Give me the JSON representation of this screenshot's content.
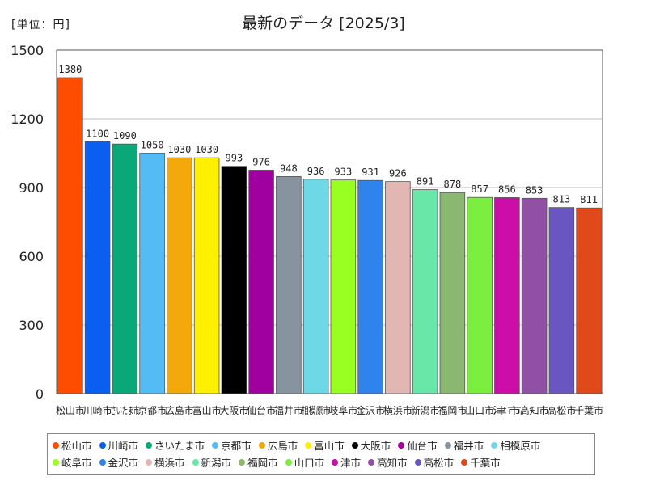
{
  "unit_label": "[単位：円]",
  "chart_data": {
    "type": "bar",
    "title": "最新のデータ [2025/3]",
    "ylim": [
      0,
      1500
    ],
    "yticks": [
      0,
      300,
      600,
      900,
      1200,
      1500
    ],
    "ytick_labels": [
      "0",
      "300",
      "600",
      "900",
      "1200",
      "1500"
    ],
    "categories": [
      "松山市",
      "川崎市",
      "さいたま市",
      "京都市",
      "広島市",
      "富山市",
      "大阪市",
      "仙台市",
      "福井市",
      "相模原市",
      "岐阜市",
      "金沢市",
      "横浜市",
      "新潟市",
      "福岡市",
      "山口市",
      "津市",
      "高知市",
      "高松市",
      "千葉市"
    ],
    "values": [
      1380,
      1100,
      1090,
      1050,
      1030,
      1030,
      993,
      976,
      948,
      936,
      933,
      931,
      926,
      891,
      878,
      857,
      856,
      853,
      813,
      811
    ],
    "value_labels": [
      "1380",
      "1100",
      "1090",
      "1050",
      "1030",
      "1030",
      "993",
      "976",
      "948",
      "936",
      "933",
      "931",
      "926",
      "891",
      "878",
      "857",
      "856",
      "853",
      "813",
      "811"
    ],
    "colors": [
      "#ff4d00",
      "#0a5ef0",
      "#0aa878",
      "#55bbf5",
      "#f4a90a",
      "#fff000",
      "#000000",
      "#a0009f",
      "#8794a0",
      "#6fd8e6",
      "#99ff22",
      "#2e84ec",
      "#e2b6b3",
      "#68e8a8",
      "#8ab86e",
      "#7cee40",
      "#cc0da7",
      "#9050a4",
      "#6a56c0",
      "#e04a1a"
    ],
    "legend_position": "bottom",
    "grid": true
  }
}
